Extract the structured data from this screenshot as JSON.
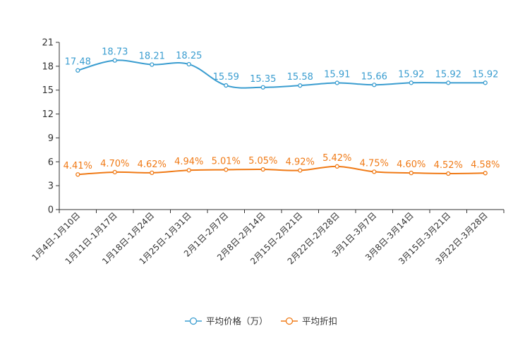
{
  "chart_data": {
    "type": "line",
    "categories": [
      "1月4日-1月10日",
      "1月11日-1月17日",
      "1月18日-1月24日",
      "1月25日-1月31日",
      "2月1日-2月7日",
      "2月8日-2月14日",
      "2月15日-2月21日",
      "2月22日-2月28日",
      "3月1日-3月7日",
      "3月8日-3月14日",
      "3月15日-3月21日",
      "3月22日-3月28日"
    ],
    "ylim": [
      0,
      21
    ],
    "yticks": [
      0,
      3,
      6,
      9,
      12,
      15,
      18,
      21
    ],
    "series": [
      {
        "name": "平均价格（万）",
        "color": "#3a9dd0",
        "values": [
          17.48,
          18.73,
          18.21,
          18.25,
          15.59,
          15.35,
          15.58,
          15.91,
          15.66,
          15.92,
          15.92,
          15.92
        ],
        "labels": [
          "17.48",
          "18.73",
          "18.21",
          "18.25",
          "15.59",
          "15.35",
          "15.58",
          "15.91",
          "15.66",
          "15.92",
          "15.92",
          "15.92"
        ]
      },
      {
        "name": "平均折扣",
        "color": "#f07a16",
        "values": [
          4.41,
          4.7,
          4.62,
          4.94,
          5.01,
          5.05,
          4.92,
          5.42,
          4.75,
          4.6,
          4.52,
          4.58
        ],
        "labels": [
          "4.41%",
          "4.70%",
          "4.62%",
          "4.94%",
          "5.01%",
          "5.05%",
          "4.92%",
          "5.42%",
          "4.75%",
          "4.60%",
          "4.52%",
          "4.58%"
        ]
      }
    ],
    "legend": "bottom-center"
  }
}
